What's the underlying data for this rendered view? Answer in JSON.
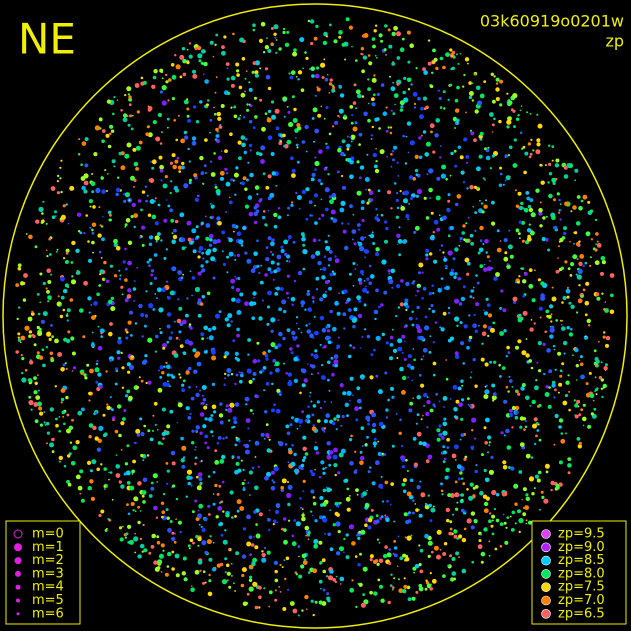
{
  "header": {
    "corner": "NE",
    "frame_id": "03k60919o0201w",
    "mode": "zp"
  },
  "legend_m": [
    "m=0",
    "m=1",
    "m=2",
    "m=3",
    "m=4",
    "m=5",
    "m=6"
  ],
  "legend_zp": [
    {
      "label": "zp=9.5",
      "color": "#e040ff"
    },
    {
      "label": "zp=9.0",
      "color": "#b020ff"
    },
    {
      "label": "zp=8.5",
      "color": "#00c8ff"
    },
    {
      "label": "zp=8.0",
      "color": "#00e860"
    },
    {
      "label": "zp=7.5",
      "color": "#ffd800"
    },
    {
      "label": "zp=7.0",
      "color": "#ff8000"
    },
    {
      "label": "zp=6.5",
      "color": "#ff6060"
    }
  ]
}
